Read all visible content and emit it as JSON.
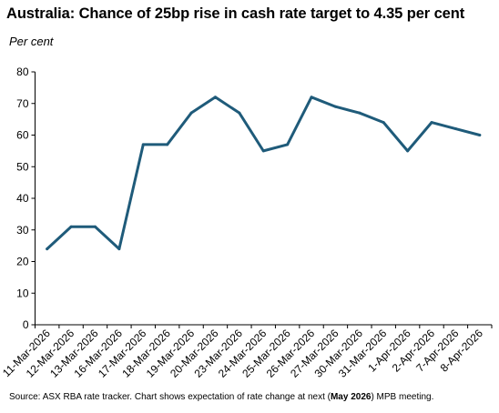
{
  "chart_data": {
    "type": "line",
    "title": "Australia: Chance of 25bp rise in cash rate target to 4.35 per cent",
    "ylabel": "Per cent",
    "xlabel": "",
    "categories": [
      "11-Mar-2026",
      "12-Mar-2026",
      "13-Mar-2026",
      "16-Mar-2026",
      "17-Mar-2026",
      "18-Mar-2026",
      "19-Mar-2026",
      "20-Mar-2026",
      "23-Mar-2026",
      "24-Mar-2026",
      "25-Mar-2026",
      "26-Mar-2026",
      "27-Mar-2026",
      "30-Mar-2026",
      "31-Mar-2026",
      "1-Apr-2026",
      "2-Apr-2026",
      "7-Apr-2026",
      "8-Apr-2026"
    ],
    "series": [
      {
        "values": [
          24,
          31,
          31,
          24,
          57,
          57,
          67,
          72,
          67,
          55,
          57,
          72,
          69,
          67,
          64,
          55,
          64,
          62,
          60
        ]
      }
    ],
    "ylim": [
      0,
      80
    ],
    "yticks": [
      0,
      10,
      20,
      30,
      40,
      50,
      60,
      70,
      80
    ],
    "grid": false,
    "legend": "none",
    "line_color": "#1f5b7a",
    "axis_color": "#000000"
  },
  "source": {
    "prefix": "Source: ASX RBA rate tracker. Chart shows expectation of rate change at next (",
    "bold": "May 2026",
    "suffix": ") MPB meeting."
  }
}
